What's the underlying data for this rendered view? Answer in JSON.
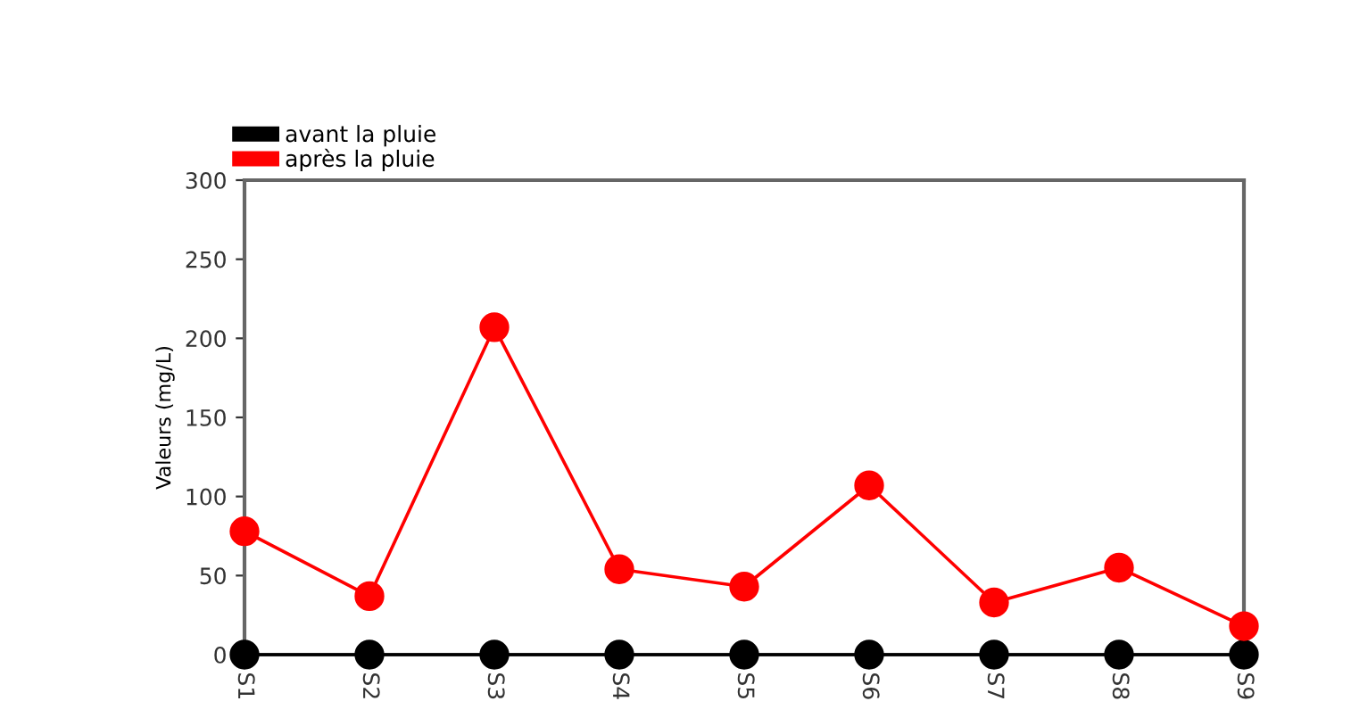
{
  "chart_data": {
    "type": "line",
    "ylabel": "Valeurs (mg/L)",
    "categories": [
      "S1",
      "S2",
      "S3",
      "S4",
      "S5",
      "S6",
      "S7",
      "S8",
      "S9"
    ],
    "series": [
      {
        "name": "avant la pluie",
        "color": "#000000",
        "values": [
          0,
          0,
          0,
          0,
          0,
          0,
          0,
          0,
          0
        ]
      },
      {
        "name": "après la pluie",
        "color": "#ff0000",
        "values": [
          78,
          37,
          207,
          54,
          43,
          107,
          33,
          55,
          18
        ]
      }
    ],
    "ylim": [
      0,
      300
    ],
    "yticks": [
      0,
      50,
      100,
      150,
      200,
      250,
      300
    ],
    "grid": false,
    "legend": "top left",
    "marker": "circle",
    "line_style": "solid"
  }
}
